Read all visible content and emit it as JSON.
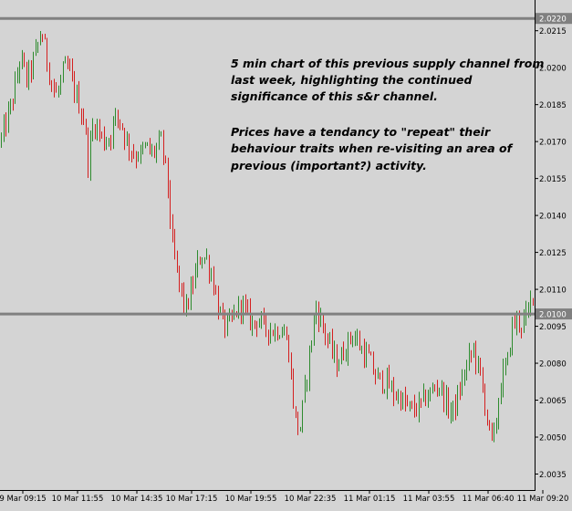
{
  "chart_data": {
    "type": "candlestick",
    "title": "",
    "xlabel": "",
    "ylabel": "",
    "ylim": [
      2.003,
      2.0226
    ],
    "y_ticks": [
      "2.0215",
      "2.0200",
      "2.0185",
      "2.0170",
      "2.0155",
      "2.0140",
      "2.0125",
      "2.0110",
      "2.0095",
      "2.0080",
      "2.0065",
      "2.0050",
      "2.0035"
    ],
    "x_ticks": [
      "9 Mar 09:15",
      "10 Mar 11:55",
      "10 Mar 14:35",
      "10 Mar 17:15",
      "10 Mar 19:55",
      "10 Mar 22:35",
      "11 Mar 01:15",
      "11 Mar 03:55",
      "11 Mar 06:40",
      "11 Mar 09:20"
    ],
    "levels": [
      {
        "label": "2.0220",
        "value": 2.022
      },
      {
        "label": "2.0100",
        "value": 2.01
      }
    ],
    "annotation": {
      "paragraph1": [
        "5 min chart of this previous supply channel from",
        "last week, highlighting the continued",
        "significance of this s&r channel."
      ],
      "paragraph2": [
        "Prices have a tendancy to \"repeat\" their",
        "behaviour traits when re-visiting an area of",
        "previous (important?) activity."
      ]
    },
    "colors": {
      "up": "#2e8b2e",
      "down": "#d42020",
      "level": "#808080",
      "background": "#d4d4d4"
    },
    "grid": false,
    "close_path": [
      [
        0,
        2.017
      ],
      [
        8,
        2.018
      ],
      [
        15,
        2.019
      ],
      [
        22,
        2.0205
      ],
      [
        28,
        2.0195
      ],
      [
        34,
        2.02
      ],
      [
        40,
        2.0208
      ],
      [
        45,
        2.0215
      ],
      [
        50,
        2.0205
      ],
      [
        55,
        2.0195
      ],
      [
        62,
        2.0188
      ],
      [
        68,
        2.0198
      ],
      [
        74,
        2.02
      ],
      [
        80,
        2.0192
      ],
      [
        86,
        2.0185
      ],
      [
        92,
        2.0178
      ],
      [
        96,
        2.0162
      ],
      [
        102,
        2.0178
      ],
      [
        108,
        2.0174
      ],
      [
        114,
        2.017
      ],
      [
        120,
        2.0172
      ],
      [
        126,
        2.018
      ],
      [
        132,
        2.0178
      ],
      [
        138,
        2.017
      ],
      [
        146,
        2.0165
      ],
      [
        154,
        2.0165
      ],
      [
        160,
        2.0168
      ],
      [
        166,
        2.0165
      ],
      [
        172,
        2.0168
      ],
      [
        176,
        2.017
      ],
      [
        180,
        2.0162
      ],
      [
        184,
        2.015
      ],
      [
        188,
        2.0128
      ],
      [
        192,
        2.012
      ],
      [
        196,
        2.0112
      ],
      [
        200,
        2.0105
      ],
      [
        204,
        2.0102
      ],
      [
        208,
        2.0108
      ],
      [
        212,
        2.0114
      ],
      [
        216,
        2.012
      ],
      [
        220,
        2.0124
      ],
      [
        226,
        2.0122
      ],
      [
        232,
        2.0115
      ],
      [
        236,
        2.0108
      ],
      [
        240,
        2.01
      ],
      [
        246,
        2.0095
      ],
      [
        252,
        2.0096
      ],
      [
        258,
        2.0101
      ],
      [
        264,
        2.0104
      ],
      [
        270,
        2.01
      ],
      [
        276,
        2.0096
      ],
      [
        282,
        2.0098
      ],
      [
        288,
        2.0095
      ],
      [
        294,
        2.0094
      ],
      [
        300,
        2.0093
      ],
      [
        306,
        2.0094
      ],
      [
        312,
        2.0092
      ],
      [
        316,
        2.0085
      ],
      [
        320,
        2.0068
      ],
      [
        324,
        2.0055
      ],
      [
        328,
        2.0053
      ],
      [
        334,
        2.007
      ],
      [
        340,
        2.0088
      ],
      [
        346,
        2.0103
      ],
      [
        350,
        2.0098
      ],
      [
        356,
        2.0092
      ],
      [
        362,
        2.0086
      ],
      [
        368,
        2.008
      ],
      [
        374,
        2.0083
      ],
      [
        380,
        2.0088
      ],
      [
        386,
        2.0092
      ],
      [
        392,
        2.0088
      ],
      [
        398,
        2.0084
      ],
      [
        404,
        2.0082
      ],
      [
        410,
        2.0075
      ],
      [
        416,
        2.0073
      ],
      [
        424,
        2.0072
      ],
      [
        430,
        2.0068
      ],
      [
        438,
        2.0066
      ],
      [
        446,
        2.0062
      ],
      [
        454,
        2.0061
      ],
      [
        460,
        2.0063
      ],
      [
        466,
        2.0066
      ],
      [
        472,
        2.0068
      ],
      [
        480,
        2.0072
      ],
      [
        488,
        2.0064
      ],
      [
        494,
        2.006
      ],
      [
        500,
        2.0064
      ],
      [
        506,
        2.0073
      ],
      [
        512,
        2.008
      ],
      [
        518,
        2.0086
      ],
      [
        524,
        2.0078
      ],
      [
        530,
        2.0066
      ],
      [
        536,
        2.0052
      ],
      [
        540,
        2.0046
      ],
      [
        545,
        2.0063
      ],
      [
        550,
        2.0075
      ],
      [
        556,
        2.008
      ],
      [
        560,
        2.0095
      ],
      [
        566,
        2.0097
      ],
      [
        572,
        2.0096
      ],
      [
        578,
        2.01
      ],
      [
        584,
        2.011
      ]
    ]
  }
}
